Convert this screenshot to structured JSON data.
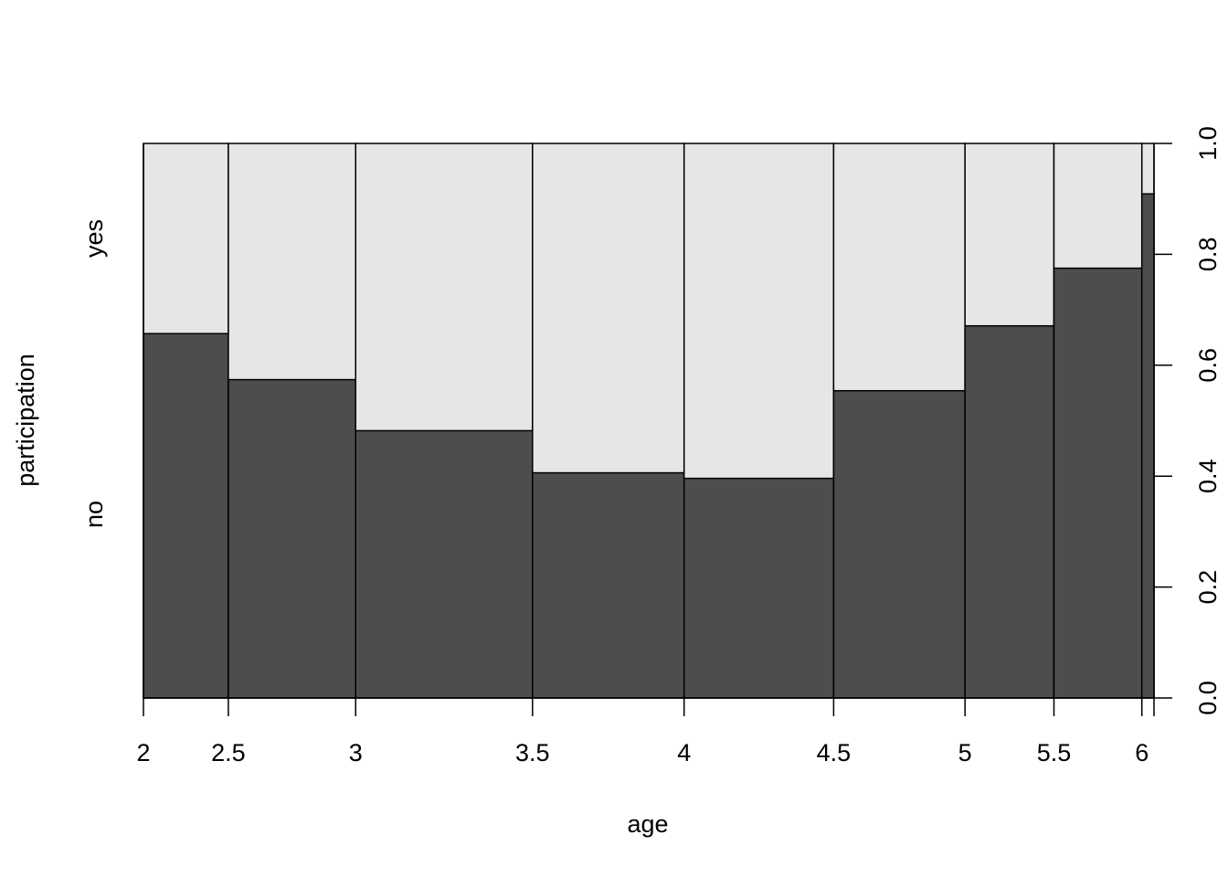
{
  "chart_data": {
    "type": "spineplot",
    "xlabel": "age",
    "ylabel": "participation",
    "x_tick_labels": [
      "2",
      "2.5",
      "3",
      "3.5",
      "4",
      "4.5",
      "5",
      "5.5",
      "6"
    ],
    "y_right_tick_labels": [
      "0.0",
      "0.2",
      "0.4",
      "0.6",
      "0.8",
      "1.0"
    ],
    "y_right_ticks": [
      0.0,
      0.2,
      0.4,
      0.6,
      0.8,
      1.0
    ],
    "y_left_category_labels": [
      "no",
      "yes"
    ],
    "bins": [
      {
        "lo": 2.0,
        "hi": 2.5,
        "width_frac": 0.084,
        "no": 0.657
      },
      {
        "lo": 2.5,
        "hi": 3.0,
        "width_frac": 0.126,
        "no": 0.574
      },
      {
        "lo": 3.0,
        "hi": 3.5,
        "width_frac": 0.175,
        "no": 0.482
      },
      {
        "lo": 3.5,
        "hi": 4.0,
        "width_frac": 0.15,
        "no": 0.406
      },
      {
        "lo": 4.0,
        "hi": 4.5,
        "width_frac": 0.148,
        "no": 0.396
      },
      {
        "lo": 4.5,
        "hi": 5.0,
        "width_frac": 0.13,
        "no": 0.554
      },
      {
        "lo": 5.0,
        "hi": 5.5,
        "width_frac": 0.088,
        "no": 0.671
      },
      {
        "lo": 5.5,
        "hi": 6.0,
        "width_frac": 0.087,
        "no": 0.775
      },
      {
        "lo": 6.0,
        "hi": 6.5,
        "width_frac": 0.012,
        "no": 0.909
      }
    ],
    "colors": {
      "no": "#4d4d4d",
      "yes": "#e6e6e6",
      "border": "#000000"
    }
  }
}
